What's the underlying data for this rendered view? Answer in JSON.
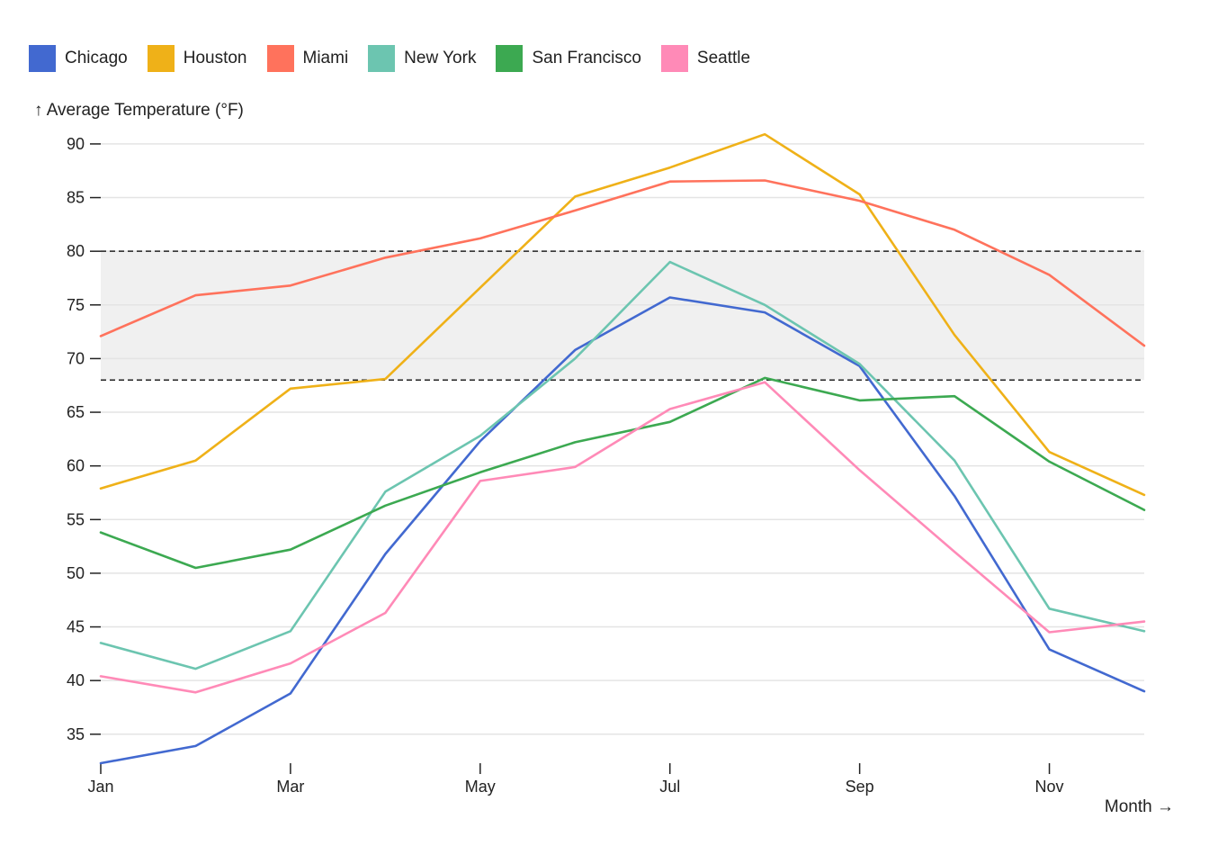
{
  "chart_data": {
    "type": "line",
    "ylabel": "↑ Average Temperature (°F)",
    "xlabel": "Month →",
    "x_tick_labels": [
      "Jan",
      "Mar",
      "May",
      "Jul",
      "Sep",
      "Nov"
    ],
    "x_values": [
      1,
      2,
      3,
      4,
      5,
      6,
      7,
      8,
      9,
      10,
      11,
      12
    ],
    "y_ticks": [
      35,
      40,
      45,
      50,
      55,
      60,
      65,
      70,
      75,
      80,
      85,
      90
    ],
    "ylim": [
      32.3,
      91
    ],
    "grid": true,
    "legend_position": "top-left",
    "comfort_band": {
      "low": 68,
      "high": 80
    },
    "series": [
      {
        "name": "Chicago",
        "color": "#4269d0",
        "values": [
          32.3,
          33.9,
          38.8,
          51.8,
          62.3,
          70.8,
          75.7,
          74.3,
          69.3,
          57.2,
          42.9,
          39.0
        ]
      },
      {
        "name": "Houston",
        "color": "#efb118",
        "values": [
          57.9,
          60.5,
          67.2,
          68.1,
          76.6,
          85.1,
          87.8,
          90.9,
          85.3,
          72.2,
          61.3,
          57.3
        ]
      },
      {
        "name": "Miami",
        "color": "#ff725c",
        "values": [
          72.1,
          75.9,
          76.8,
          79.4,
          81.2,
          83.8,
          86.5,
          86.6,
          84.7,
          82.0,
          77.8,
          71.2
        ]
      },
      {
        "name": "New York",
        "color": "#6cc5b0",
        "values": [
          43.5,
          41.1,
          44.6,
          57.6,
          62.8,
          70.0,
          79.0,
          75.0,
          69.5,
          60.5,
          46.7,
          44.6
        ]
      },
      {
        "name": "San Francisco",
        "color": "#3ca951",
        "values": [
          53.8,
          50.5,
          52.2,
          56.3,
          59.4,
          62.2,
          64.1,
          68.2,
          66.1,
          66.5,
          60.4,
          55.9
        ]
      },
      {
        "name": "Seattle",
        "color": "#ff8ab7",
        "values": [
          40.4,
          38.9,
          41.6,
          46.3,
          58.6,
          59.9,
          65.3,
          67.8,
          59.6,
          52.0,
          44.5,
          45.5
        ]
      }
    ]
  }
}
